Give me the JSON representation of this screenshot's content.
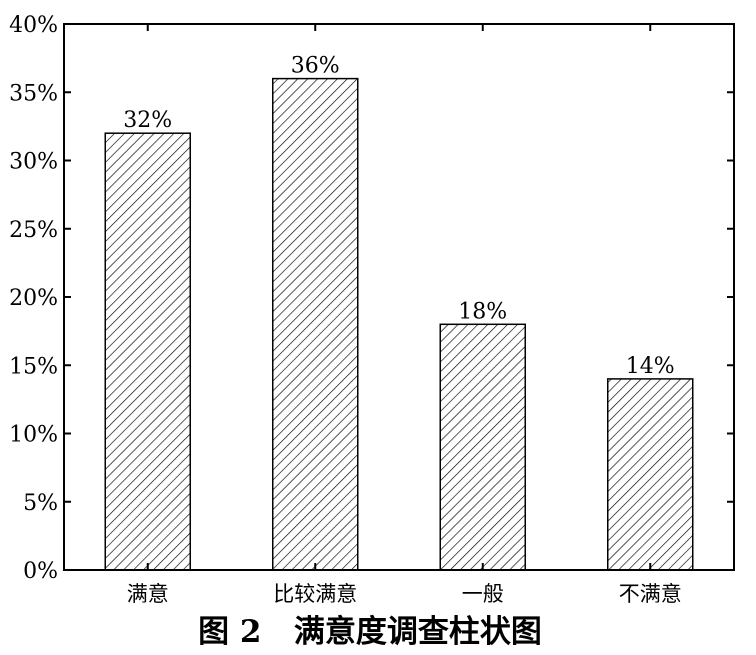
{
  "chart_data": {
    "type": "bar",
    "categories": [
      "满意",
      "比较满意",
      "一般",
      "不满意"
    ],
    "values": [
      32,
      36,
      18,
      14
    ],
    "value_labels": [
      "32%",
      "36%",
      "18%",
      "14%"
    ],
    "y_ticks": [
      0,
      5,
      10,
      15,
      20,
      25,
      30,
      35,
      40
    ],
    "y_tick_labels": [
      "0%",
      "5%",
      "10%",
      "15%",
      "20%",
      "25%",
      "30%",
      "35%",
      "40%"
    ],
    "ylim": [
      0,
      40
    ],
    "bar_fill": "hatched",
    "grid": false,
    "caption": "图 2   满意度调查柱状图"
  }
}
